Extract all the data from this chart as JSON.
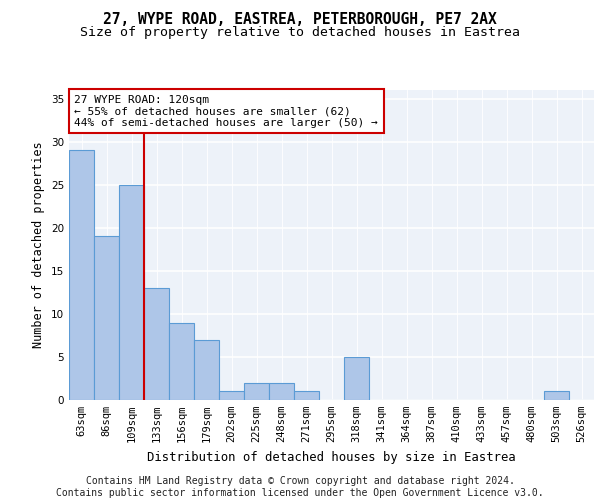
{
  "title1": "27, WYPE ROAD, EASTREA, PETERBOROUGH, PE7 2AX",
  "title2": "Size of property relative to detached houses in Eastrea",
  "xlabel": "Distribution of detached houses by size in Eastrea",
  "ylabel": "Number of detached properties",
  "categories": [
    "63sqm",
    "86sqm",
    "109sqm",
    "133sqm",
    "156sqm",
    "179sqm",
    "202sqm",
    "225sqm",
    "248sqm",
    "271sqm",
    "295sqm",
    "318sqm",
    "341sqm",
    "364sqm",
    "387sqm",
    "410sqm",
    "433sqm",
    "457sqm",
    "480sqm",
    "503sqm",
    "526sqm"
  ],
  "values": [
    29,
    19,
    25,
    13,
    9,
    7,
    1,
    2,
    2,
    1,
    0,
    5,
    0,
    0,
    0,
    0,
    0,
    0,
    0,
    1,
    0
  ],
  "bar_color": "#aec6e8",
  "bar_edge_color": "#5b9bd5",
  "background_color": "#edf2f9",
  "grid_color": "#ffffff",
  "vline_index": 2,
  "vline_color": "#cc0000",
  "annotation_line1": "27 WYPE ROAD: 120sqm",
  "annotation_line2": "← 55% of detached houses are smaller (62)",
  "annotation_line3": "44% of semi-detached houses are larger (50) →",
  "annotation_box_edgecolor": "#cc0000",
  "ylim_max": 36,
  "yticks": [
    0,
    5,
    10,
    15,
    20,
    25,
    30,
    35
  ],
  "footer_line1": "Contains HM Land Registry data © Crown copyright and database right 2024.",
  "footer_line2": "Contains public sector information licensed under the Open Government Licence v3.0.",
  "title1_fontsize": 10.5,
  "title2_fontsize": 9.5,
  "xlabel_fontsize": 8.8,
  "ylabel_fontsize": 8.5,
  "tick_fontsize": 7.5,
  "annotation_fontsize": 8,
  "footer_fontsize": 7
}
